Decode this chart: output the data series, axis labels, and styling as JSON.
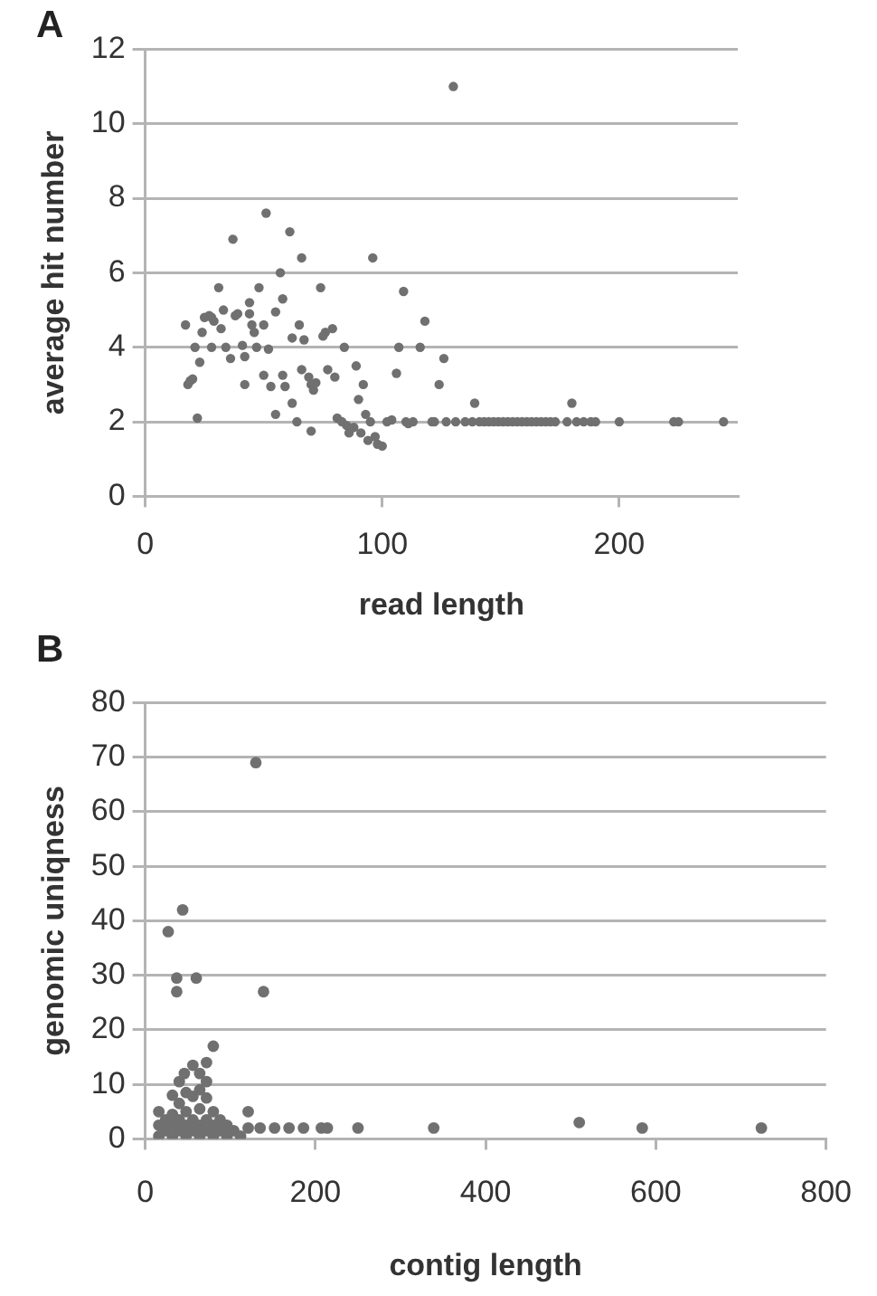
{
  "chart_data": [
    {
      "type": "scatter",
      "title": "A",
      "xlabel": "read length",
      "ylabel": "average hit number",
      "xlim": [
        0,
        250
      ],
      "xticks": [
        0,
        100,
        200
      ],
      "ylim": [
        0,
        12
      ],
      "yticks": [
        0,
        2,
        4,
        6,
        8,
        10,
        12
      ],
      "grid": "y",
      "marker": "circle",
      "series": [
        {
          "color": "#707070",
          "x": [
            17,
            18,
            19,
            20,
            22,
            21,
            23,
            24,
            25,
            27,
            28,
            29,
            28,
            31,
            32,
            33,
            34,
            36,
            37,
            38,
            39,
            41,
            42,
            42,
            44,
            44,
            45,
            46,
            47,
            48,
            50,
            50,
            51,
            52,
            53,
            55,
            55,
            57,
            58,
            58,
            59,
            61,
            62,
            62,
            64,
            65,
            66,
            66,
            67,
            69,
            70,
            70,
            71,
            72,
            74,
            75,
            76,
            77,
            79,
            80,
            81,
            83,
            84,
            85,
            86,
            88,
            89,
            90,
            91,
            92,
            93,
            94,
            95,
            96,
            97,
            98,
            100,
            102,
            104,
            106,
            107,
            109,
            110,
            111,
            113,
            116,
            118,
            121,
            122,
            124,
            126,
            127,
            131,
            135,
            139,
            138,
            141,
            143,
            145,
            147,
            149,
            151,
            153,
            155,
            157,
            159,
            161,
            163,
            165,
            167,
            169,
            171,
            173,
            178,
            180,
            182,
            185,
            188,
            190,
            200,
            223,
            225,
            244,
            130
          ],
          "values": [
            4.6,
            3.0,
            3.1,
            3.15,
            2.1,
            4.0,
            3.6,
            4.4,
            4.8,
            4.85,
            4.8,
            4.7,
            4.0,
            5.6,
            4.5,
            5.0,
            4.0,
            3.7,
            6.9,
            4.85,
            4.9,
            4.05,
            3.75,
            3.0,
            5.2,
            4.9,
            4.6,
            4.4,
            4.0,
            5.6,
            4.6,
            3.25,
            7.6,
            3.95,
            2.95,
            4.95,
            2.2,
            6.0,
            5.3,
            3.25,
            2.95,
            7.1,
            2.5,
            4.25,
            2.0,
            4.6,
            6.4,
            3.4,
            4.2,
            3.2,
            3.0,
            1.75,
            2.85,
            3.05,
            5.6,
            4.3,
            4.4,
            3.4,
            4.5,
            3.2,
            2.1,
            2.0,
            4.0,
            1.9,
            1.7,
            1.85,
            3.5,
            2.6,
            1.7,
            3.0,
            2.2,
            1.5,
            2.0,
            6.4,
            1.6,
            1.4,
            1.35,
            2.0,
            2.05,
            3.3,
            4.0,
            5.5,
            2.0,
            1.95,
            2.0,
            4.0,
            4.7,
            2.0,
            2.0,
            3.0,
            3.7,
            2.0,
            2.0,
            2.0,
            2.5,
            2.0,
            2.0,
            2.0,
            2.0,
            2.0,
            2.0,
            2.0,
            2.0,
            2.0,
            2.0,
            2.0,
            2.0,
            2.0,
            2.0,
            2.0,
            2.0,
            2.0,
            2.0,
            2.0,
            2.5,
            2.0,
            2.0,
            2.0,
            2.0,
            2.0,
            2.0,
            2.0,
            2.0,
            11.0
          ]
        }
      ]
    },
    {
      "type": "scatter",
      "title": "B",
      "xlabel": "contig length",
      "ylabel": "genomic uniqness",
      "xlim": [
        0,
        800
      ],
      "xticks": [
        0,
        200,
        400,
        600,
        800
      ],
      "ylim": [
        0,
        80
      ],
      "yticks": [
        0,
        10,
        20,
        30,
        40,
        50,
        60,
        70,
        80
      ],
      "grid": "y",
      "marker": "circle",
      "series": [
        {
          "color": "#707070",
          "x": [
            16,
            16,
            16,
            24,
            24,
            32,
            32,
            32,
            32,
            40,
            40,
            40,
            40,
            48,
            48,
            46,
            48,
            48,
            56,
            56,
            56,
            56,
            64,
            64,
            64,
            64,
            64,
            72,
            72,
            72,
            72,
            72,
            80,
            80,
            80,
            80,
            88,
            88,
            96,
            96,
            104,
            112,
            27,
            44,
            37,
            37,
            60,
            130,
            139,
            121,
            121,
            135,
            152,
            169,
            186,
            207,
            214,
            250,
            339,
            510,
            584,
            724
          ],
          "values": [
            0.5,
            2.5,
            5,
            1.5,
            3.5,
            0.5,
            2.5,
            4.5,
            8,
            1.5,
            3.5,
            6.5,
            10.5,
            0.5,
            2.5,
            12,
            5,
            8.5,
            1.5,
            3.5,
            7.8,
            13.5,
            0.5,
            2.5,
            5.5,
            9,
            12,
            1.5,
            3.5,
            7.5,
            10.5,
            14,
            0.5,
            2.5,
            5,
            17,
            1.5,
            3.5,
            0.5,
            2.5,
            1.5,
            0.5,
            38,
            42,
            29.5,
            27,
            29.5,
            69,
            27,
            5,
            2,
            2,
            2,
            2,
            2,
            2,
            2,
            2,
            2,
            3,
            2,
            2
          ]
        }
      ]
    }
  ]
}
